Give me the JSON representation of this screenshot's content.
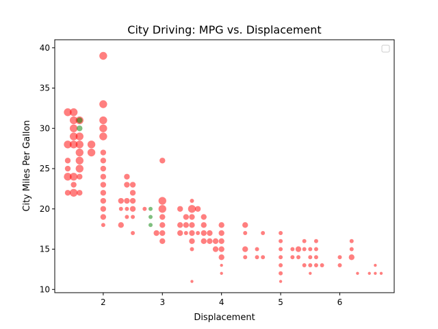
{
  "chart_data": {
    "type": "scatter",
    "title": "City Driving: MPG vs. Displacement",
    "xlabel": "Displacement",
    "ylabel": "City Miles Per Gallon",
    "xlim": [
      1.18,
      6.92
    ],
    "ylim": [
      9.6,
      41.0
    ],
    "xticks": [
      2,
      3,
      4,
      5,
      6
    ],
    "yticks": [
      10,
      15,
      20,
      25,
      30,
      35,
      40
    ],
    "grid": false,
    "legend": {
      "placement": "top-right",
      "entries": []
    },
    "colors": {
      "red": "#ff0000",
      "green": "#008000"
    },
    "point_alpha": 0.5,
    "series": [
      {
        "color": "red",
        "points": [
          [
            1.4,
            32,
            "L"
          ],
          [
            1.4,
            28,
            "L"
          ],
          [
            1.4,
            26,
            "M"
          ],
          [
            1.4,
            25,
            "M"
          ],
          [
            1.4,
            24,
            "L"
          ],
          [
            1.4,
            22,
            "M"
          ],
          [
            1.5,
            32,
            "L"
          ],
          [
            1.5,
            31,
            "L"
          ],
          [
            1.5,
            30,
            "L"
          ],
          [
            1.5,
            29,
            "L"
          ],
          [
            1.5,
            28,
            "L"
          ],
          [
            1.5,
            24,
            "L"
          ],
          [
            1.5,
            23,
            "M"
          ],
          [
            1.5,
            22,
            "L"
          ],
          [
            1.6,
            31,
            "L"
          ],
          [
            1.6,
            29,
            "L"
          ],
          [
            1.6,
            28,
            "L"
          ],
          [
            1.6,
            27,
            "L"
          ],
          [
            1.6,
            26,
            "L"
          ],
          [
            1.6,
            25,
            "L"
          ],
          [
            1.6,
            24,
            "M"
          ],
          [
            1.6,
            22,
            "M"
          ],
          [
            1.8,
            28,
            "L"
          ],
          [
            1.8,
            27,
            "L"
          ],
          [
            2.0,
            39,
            "L"
          ],
          [
            2.0,
            33,
            "L"
          ],
          [
            2.0,
            31,
            "L"
          ],
          [
            2.0,
            30,
            "L"
          ],
          [
            2.0,
            29,
            "L"
          ],
          [
            2.0,
            27,
            "M"
          ],
          [
            2.0,
            26,
            "M"
          ],
          [
            2.0,
            25,
            "M"
          ],
          [
            2.0,
            24,
            "M"
          ],
          [
            2.0,
            23,
            "M"
          ],
          [
            2.0,
            22,
            "M"
          ],
          [
            2.0,
            21,
            "M"
          ],
          [
            2.0,
            20,
            "M"
          ],
          [
            2.0,
            19,
            "M"
          ],
          [
            2.0,
            18,
            "S"
          ],
          [
            2.3,
            21,
            "M"
          ],
          [
            2.3,
            20,
            "S"
          ],
          [
            2.3,
            18,
            "M"
          ],
          [
            2.4,
            24,
            "M"
          ],
          [
            2.4,
            23,
            "M"
          ],
          [
            2.4,
            21,
            "M"
          ],
          [
            2.4,
            20,
            "S"
          ],
          [
            2.4,
            19,
            "S"
          ],
          [
            2.5,
            23,
            "M"
          ],
          [
            2.5,
            22,
            "M"
          ],
          [
            2.5,
            21,
            "M"
          ],
          [
            2.5,
            20,
            "M"
          ],
          [
            2.5,
            19,
            "S"
          ],
          [
            2.5,
            17,
            "S"
          ],
          [
            2.7,
            20,
            "S"
          ],
          [
            2.9,
            17,
            "M"
          ],
          [
            3.0,
            26,
            "M"
          ],
          [
            3.0,
            21,
            "L"
          ],
          [
            3.0,
            20,
            "L"
          ],
          [
            3.0,
            19,
            "M"
          ],
          [
            3.0,
            18,
            "M"
          ],
          [
            3.0,
            17,
            "M"
          ],
          [
            3.0,
            16,
            "M"
          ],
          [
            3.3,
            20,
            "M"
          ],
          [
            3.3,
            18,
            "M"
          ],
          [
            3.3,
            17,
            "M"
          ],
          [
            3.4,
            19,
            "M"
          ],
          [
            3.4,
            18,
            "M"
          ],
          [
            3.4,
            17,
            "S"
          ],
          [
            3.5,
            21,
            "S"
          ],
          [
            3.5,
            20,
            "L"
          ],
          [
            3.5,
            19,
            "M"
          ],
          [
            3.5,
            18,
            "M"
          ],
          [
            3.5,
            17,
            "M"
          ],
          [
            3.5,
            16,
            "M"
          ],
          [
            3.5,
            15,
            "S"
          ],
          [
            3.5,
            11,
            "XS"
          ],
          [
            3.6,
            20,
            "M"
          ],
          [
            3.6,
            17,
            "S"
          ],
          [
            3.7,
            19,
            "M"
          ],
          [
            3.7,
            18,
            "M"
          ],
          [
            3.7,
            17,
            "M"
          ],
          [
            3.7,
            16,
            "M"
          ],
          [
            3.8,
            17,
            "M"
          ],
          [
            3.8,
            16,
            "M"
          ],
          [
            3.9,
            16,
            "M"
          ],
          [
            3.9,
            15,
            "M"
          ],
          [
            4.0,
            18,
            "M"
          ],
          [
            4.0,
            17,
            "M"
          ],
          [
            4.0,
            16,
            "M"
          ],
          [
            4.0,
            15,
            "M"
          ],
          [
            4.0,
            14,
            "M"
          ],
          [
            4.0,
            13,
            "XS"
          ],
          [
            4.0,
            12,
            "XS"
          ],
          [
            4.4,
            18,
            "M"
          ],
          [
            4.4,
            17,
            "S"
          ],
          [
            4.4,
            15,
            "M"
          ],
          [
            4.4,
            14,
            "S"
          ],
          [
            4.6,
            15,
            "S"
          ],
          [
            4.6,
            14,
            "S"
          ],
          [
            4.7,
            17,
            "S"
          ],
          [
            4.7,
            14,
            "S"
          ],
          [
            5.0,
            17,
            "S"
          ],
          [
            5.0,
            16,
            "S"
          ],
          [
            5.0,
            15,
            "S"
          ],
          [
            5.0,
            14,
            "S"
          ],
          [
            5.0,
            13,
            "S"
          ],
          [
            5.0,
            12,
            "S"
          ],
          [
            5.0,
            11,
            "XS"
          ],
          [
            5.2,
            15,
            "S"
          ],
          [
            5.2,
            14,
            "S"
          ],
          [
            5.3,
            15,
            "M"
          ],
          [
            5.3,
            14,
            "S"
          ],
          [
            5.4,
            16,
            "S"
          ],
          [
            5.4,
            15,
            "S"
          ],
          [
            5.4,
            13,
            "S"
          ],
          [
            5.5,
            15,
            "S"
          ],
          [
            5.5,
            14,
            "S"
          ],
          [
            5.5,
            13,
            "S"
          ],
          [
            5.5,
            12,
            "XS"
          ],
          [
            5.6,
            16,
            "S"
          ],
          [
            5.6,
            15,
            "S"
          ],
          [
            5.6,
            14,
            "S"
          ],
          [
            5.6,
            13,
            "S"
          ],
          [
            5.7,
            13,
            "S"
          ],
          [
            6.0,
            14,
            "S"
          ],
          [
            6.0,
            13,
            "S"
          ],
          [
            6.2,
            16,
            "S"
          ],
          [
            6.2,
            15,
            "S"
          ],
          [
            6.2,
            14,
            "M"
          ],
          [
            6.3,
            12,
            "XS"
          ],
          [
            6.5,
            12,
            "XS"
          ],
          [
            6.6,
            13,
            "XS"
          ],
          [
            6.6,
            12,
            "XS"
          ],
          [
            6.7,
            12,
            "XS"
          ]
        ]
      },
      {
        "color": "green",
        "points": [
          [
            1.6,
            31,
            "M"
          ],
          [
            1.6,
            30,
            "M"
          ],
          [
            2.8,
            20,
            "S"
          ],
          [
            2.8,
            19,
            "S"
          ],
          [
            2.8,
            18,
            "S"
          ]
        ]
      }
    ]
  }
}
